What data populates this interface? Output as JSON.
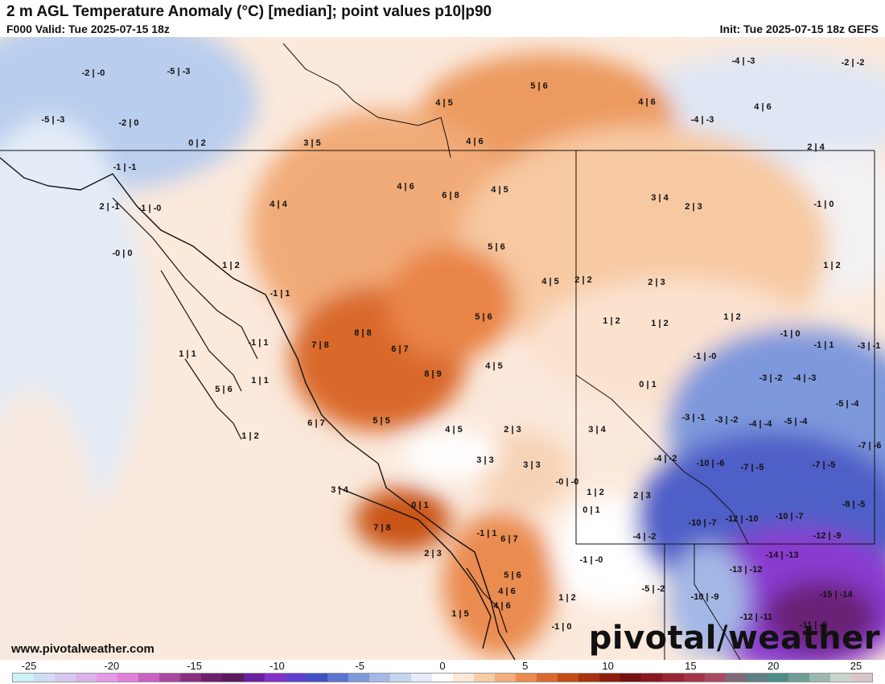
{
  "header": {
    "title": "2 m AGL Temperature Anomaly (°C) [median]; point values p10|p90",
    "valid": "F000 Valid: Tue 2025-07-15 18z",
    "init": "Init: Tue 2025-07-15 18z GEFS"
  },
  "footer": {
    "website": "www.pivotalweather.com",
    "brand_left": "pivotal",
    "brand_right": "weather"
  },
  "colorbar": {
    "tick_labels": [
      "-25",
      "-20",
      "-15",
      "-10",
      "-5",
      "0",
      "5",
      "10",
      "15",
      "20",
      "25"
    ],
    "colors": [
      "#c9f2f7",
      "#cfdcf3",
      "#d5c8ef",
      "#ddb2ea",
      "#e59ae4",
      "#e27fd8",
      "#c861bf",
      "#a9469f",
      "#8a2f7f",
      "#6e1f69",
      "#5a1a5d",
      "#6a23a0",
      "#8230c8",
      "#5e3fcf",
      "#4050c4",
      "#5a74d0",
      "#7e98dc",
      "#a4b8e6",
      "#c7d6f0",
      "#e4ecf7",
      "#ffffff",
      "#fde8d6",
      "#f9cca8",
      "#f4ad7c",
      "#ea8b50",
      "#d96a2d",
      "#c24d14",
      "#a8320b",
      "#8d1e0b",
      "#781010",
      "#8a1820",
      "#9a2434",
      "#a5354a",
      "#a84a62",
      "#7f6a7a",
      "#5f7e86",
      "#4f8a85",
      "#6f9e95",
      "#9cb8ae",
      "#c6d4cc",
      "#d9c6c8"
    ]
  },
  "map_labels": [
    {
      "text": "-2|-0"
    },
    {
      "text": "-5|-3"
    },
    {
      "text": "-5|-3"
    },
    {
      "text": "-2|0"
    },
    {
      "text": "0|2"
    },
    {
      "text": "3|5"
    },
    {
      "text": "4|5"
    },
    {
      "text": "5|6"
    },
    {
      "text": "4|6"
    },
    {
      "text": "4|6"
    },
    {
      "text": "-4|-3"
    },
    {
      "text": "-2|-2"
    },
    {
      "text": "4|6"
    },
    {
      "text": "-4|-3"
    },
    {
      "text": "2|4"
    },
    {
      "text": "-1|-1"
    },
    {
      "text": "2|-1"
    },
    {
      "text": "-1|-0"
    },
    {
      "text": "4|4"
    },
    {
      "text": "4|6"
    },
    {
      "text": "6|8"
    },
    {
      "text": "4|5"
    },
    {
      "text": "3|4"
    },
    {
      "text": "2|3"
    },
    {
      "text": "-1|0"
    },
    {
      "text": "-0|0"
    },
    {
      "text": "1|2"
    },
    {
      "text": "5|6"
    },
    {
      "text": "1|2"
    },
    {
      "text": "4|5"
    },
    {
      "text": "2|2"
    },
    {
      "text": "2|3"
    },
    {
      "text": "-1|1"
    },
    {
      "text": "1|2"
    },
    {
      "text": "1|2"
    },
    {
      "text": "1|2"
    },
    {
      "text": "5|6"
    },
    {
      "text": "-1|0"
    },
    {
      "text": "-1|1"
    },
    {
      "text": "-3|-1"
    },
    {
      "text": "-1|1"
    },
    {
      "text": "7|8"
    },
    {
      "text": "8|8"
    },
    {
      "text": "6|7"
    },
    {
      "text": "-1|-0"
    },
    {
      "text": "1|1"
    },
    {
      "text": "1|1"
    },
    {
      "text": "8|9"
    },
    {
      "text": "4|5"
    },
    {
      "text": "-3|-2"
    },
    {
      "text": "-4|-3"
    },
    {
      "text": "0|1"
    },
    {
      "text": "-5|-4"
    },
    {
      "text": "5|6"
    },
    {
      "text": "1|2"
    },
    {
      "text": "6|7"
    },
    {
      "text": "5|5"
    },
    {
      "text": "4|5"
    },
    {
      "text": "2|3"
    },
    {
      "text": "3|4"
    },
    {
      "text": "-3|-1"
    },
    {
      "text": "-3|-2"
    },
    {
      "text": "-4|-4"
    },
    {
      "text": "-5|-4"
    },
    {
      "text": "-7|-6"
    },
    {
      "text": "3|3"
    },
    {
      "text": "3|3"
    },
    {
      "text": "-4|-2"
    },
    {
      "text": "-10|-6"
    },
    {
      "text": "-7|-5"
    },
    {
      "text": "-7|-5"
    },
    {
      "text": "-0|-0"
    },
    {
      "text": "3|4"
    },
    {
      "text": "1|2"
    },
    {
      "text": "2|3"
    },
    {
      "text": "0|1"
    },
    {
      "text": "0|1"
    },
    {
      "text": "-8|-5"
    },
    {
      "text": "-10|-7"
    },
    {
      "text": "-12|-10"
    },
    {
      "text": "-10|-7"
    },
    {
      "text": "7|8"
    },
    {
      "text": "-1|1"
    },
    {
      "text": "6|7"
    },
    {
      "text": "-4|-2"
    },
    {
      "text": "-12|-9"
    },
    {
      "text": "2|3"
    },
    {
      "text": "-1|-0"
    },
    {
      "text": "-14|-13"
    },
    {
      "text": "5|6"
    },
    {
      "text": "-13|-12"
    },
    {
      "text": "4|6"
    },
    {
      "text": "-5|-2"
    },
    {
      "text": "1|2"
    },
    {
      "text": "-10|-9"
    },
    {
      "text": "-15|-14"
    },
    {
      "text": "4|6"
    },
    {
      "text": "1|5"
    },
    {
      "text": "-1|0"
    },
    {
      "text": "-12|-11"
    },
    {
      "text": "-11|-9"
    }
  ]
}
